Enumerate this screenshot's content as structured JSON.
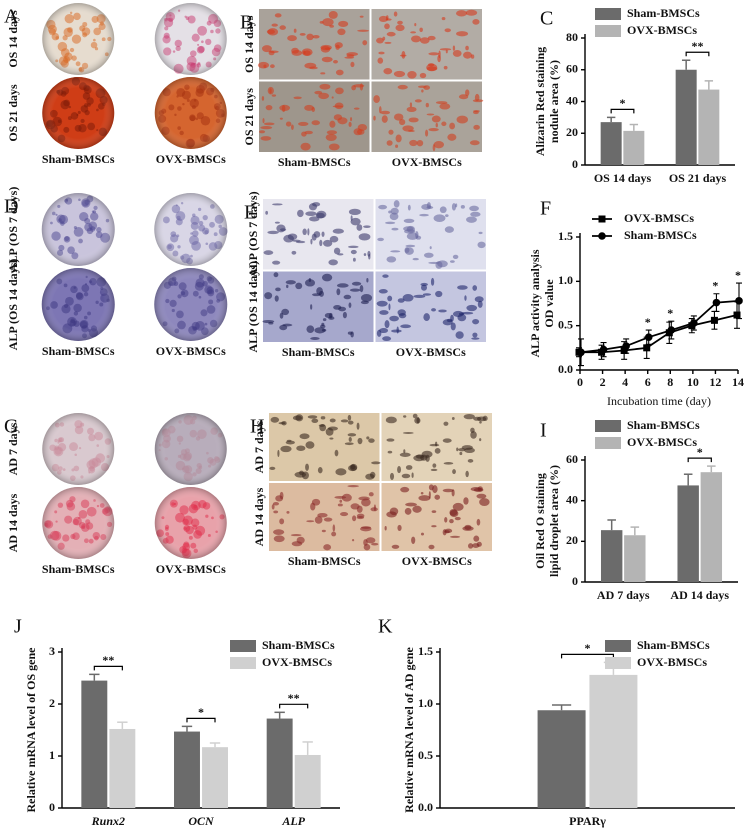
{
  "photo_panels": [
    {
      "panel": "A",
      "rows": [
        "OS 14 days",
        "OS 21 days"
      ],
      "columns": [
        "Sham-BMSCs",
        "OVX-BMSCs"
      ]
    },
    {
      "panel": "B",
      "rows": [
        "OS 14 days",
        "OS 21 days"
      ],
      "columns": [
        "Sham-BMSCs",
        "OVX-BMSCs"
      ]
    },
    {
      "panel": "D",
      "rows": [
        "ALP (OS 7 days)",
        "ALP (OS 14 days)"
      ],
      "columns": [
        "Sham-BMSCs",
        "OVX-BMSCs"
      ]
    },
    {
      "panel": "E",
      "rows": [
        "ALP (OS 7 days)",
        "ALP (OS 14 days)"
      ],
      "columns": [
        "Sham-BMSCs",
        "OVX-BMSCs"
      ]
    },
    {
      "panel": "G",
      "rows": [
        "AD 7 days",
        "AD 14 days"
      ],
      "columns": [
        "Sham-BMSCs",
        "OVX-BMSCs"
      ]
    },
    {
      "panel": "H",
      "rows": [
        "AD 7 days",
        "AD 14 days"
      ],
      "columns": [
        "Sham-BMSCs",
        "OVX-BMSCs"
      ]
    }
  ],
  "chart_data": [
    {
      "type": "bar",
      "panel": "C",
      "y_label": [
        "Alizarin Red staining",
        "nodule area (%)"
      ],
      "categories": [
        "OS 14 days",
        "OS 21 days"
      ],
      "series": [
        {
          "name": "Sham-BMSCs",
          "color": "#6b6b6b",
          "values": [
            27,
            60
          ],
          "errors": [
            3,
            6
          ]
        },
        {
          "name": "OVX-BMSCs",
          "color": "#b4b4b4",
          "values": [
            21.5,
            47.5
          ],
          "errors": [
            4,
            5.5
          ]
        }
      ],
      "annotations": [
        "*",
        "**"
      ],
      "ylim": [
        0,
        80
      ],
      "yticks": [
        0,
        20,
        40,
        60,
        80
      ],
      "legend": "top"
    },
    {
      "type": "line",
      "panel": "F",
      "y_label": [
        "ALP activity analysis",
        "OD value"
      ],
      "x_label": "Incubation time (day)",
      "x": [
        0,
        2,
        4,
        6,
        8,
        10,
        12,
        14
      ],
      "series": [
        {
          "name": "OVX-BMSCs",
          "color": "#000000",
          "marker": "square",
          "values": [
            0.2,
            0.2,
            0.22,
            0.25,
            0.42,
            0.5,
            0.56,
            0.62
          ],
          "errors": [
            0.05,
            0.08,
            0.1,
            0.12,
            0.12,
            0.08,
            0.1,
            0.15
          ]
        },
        {
          "name": "Sham-BMSCs",
          "color": "#000000",
          "marker": "circle",
          "values": [
            0.2,
            0.23,
            0.27,
            0.37,
            0.45,
            0.53,
            0.76,
            0.78
          ],
          "errors": [
            0.15,
            0.08,
            0.08,
            0.08,
            0.1,
            0.08,
            0.1,
            0.2
          ]
        }
      ],
      "annotations": [
        null,
        null,
        null,
        "*",
        "*",
        null,
        "*",
        "*"
      ],
      "xlim": [
        0,
        14
      ],
      "xticks": [
        0,
        2,
        4,
        6,
        8,
        10,
        12,
        14
      ],
      "ylim": [
        0,
        1.5
      ],
      "yticks": [
        {
          "value": 0,
          "label": "0.0"
        },
        0.5,
        {
          "value": 1,
          "label": "1.0"
        },
        1.5
      ],
      "legend": "upper left"
    },
    {
      "type": "bar",
      "panel": "I",
      "y_label": [
        "Oil Red O staining",
        "lipid droplet area (%)"
      ],
      "categories": [
        "AD 7 days",
        "AD 14 days"
      ],
      "series": [
        {
          "name": "Sham-BMSCs",
          "color": "#6b6b6b",
          "values": [
            25.5,
            47.5
          ],
          "errors": [
            5,
            5.5
          ]
        },
        {
          "name": "OVX-BMSCs",
          "color": "#b4b4b4",
          "values": [
            23,
            54
          ],
          "errors": [
            4,
            3
          ]
        }
      ],
      "annotations": [
        null,
        "*"
      ],
      "ylim": [
        0,
        60
      ],
      "yticks": [
        0,
        20,
        40,
        60
      ],
      "legend": "top"
    },
    {
      "type": "bar",
      "panel": "J",
      "y_label": [
        "Relative mRNA level of OS gene"
      ],
      "italic_categories": true,
      "categories": [
        "Runx2",
        "OCN",
        "ALP"
      ],
      "series": [
        {
          "name": "Sham-BMSCs",
          "color": "#6b6b6b",
          "values": [
            2.45,
            1.47,
            1.72
          ],
          "errors": [
            0.12,
            0.1,
            0.12
          ]
        },
        {
          "name": "OVX-BMSCs",
          "color": "#d0d0d0",
          "values": [
            1.52,
            1.17,
            1.02
          ],
          "errors": [
            0.13,
            0.08,
            0.25
          ]
        }
      ],
      "annotations": [
        "**",
        "*",
        "**"
      ],
      "ylim": [
        0,
        3
      ],
      "yticks": [
        0,
        1,
        2,
        3
      ],
      "legend": "upper right"
    },
    {
      "type": "bar",
      "panel": "K",
      "y_label": [
        "Relative mRNA level of AD gene"
      ],
      "categories": [
        "PPARγ"
      ],
      "series": [
        {
          "name": "Sham-BMSCs",
          "color": "#6b6b6b",
          "values": [
            0.94
          ],
          "errors": [
            0.05
          ]
        },
        {
          "name": "OVX-BMSCs",
          "color": "#d0d0d0",
          "values": [
            1.28
          ],
          "errors": [
            0.12
          ]
        }
      ],
      "annotations": [
        "*"
      ],
      "ylim": [
        0,
        1.5
      ],
      "yticks": [
        {
          "value": 0,
          "label": "0.0"
        },
        0.5,
        {
          "value": 1,
          "label": "1.0"
        },
        1.5
      ],
      "legend": "upper right"
    }
  ]
}
